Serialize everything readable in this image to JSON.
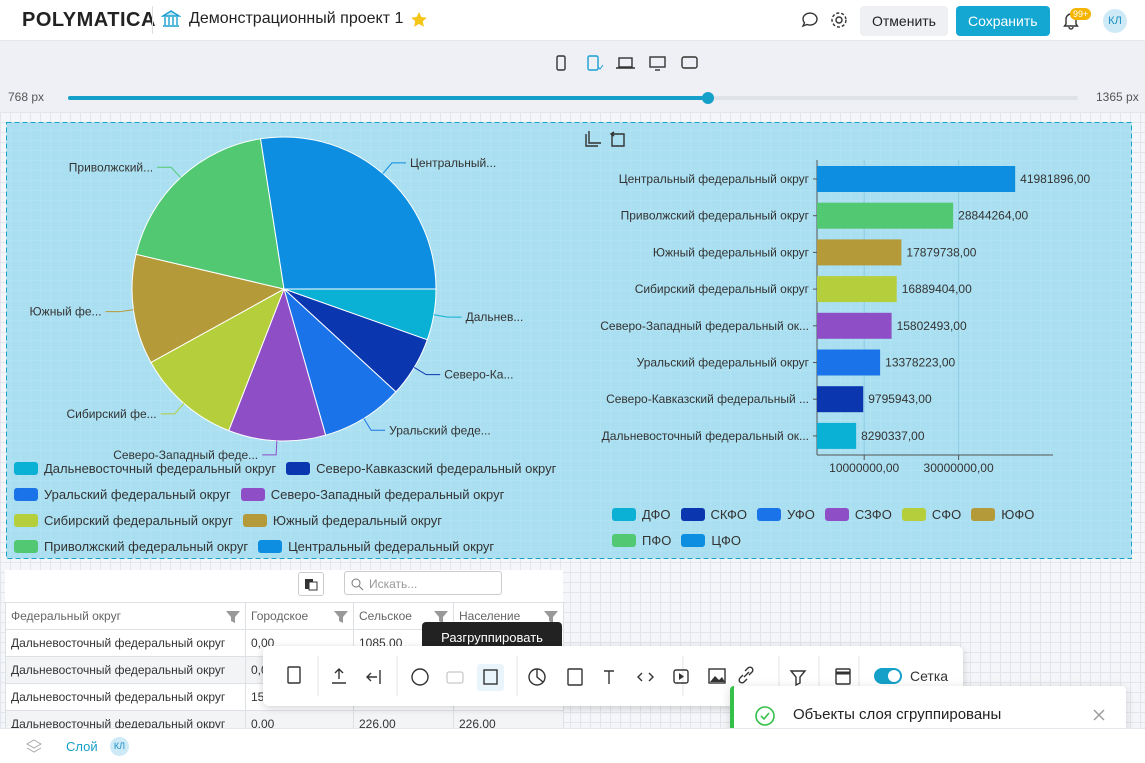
{
  "header": {
    "logo": "POLYMATICA",
    "project": "Демонстрационный проект 1",
    "cancel": "Отменить",
    "save": "Сохранить",
    "badge": "99+",
    "avatar": "КЛ"
  },
  "slider": {
    "min_label": "768 px",
    "max_label": "1365 px"
  },
  "chart_data": [
    {
      "type": "pie",
      "categories": [
        "Дальневосточный федеральный округ",
        "Северо-Кавказский федеральный округ",
        "Уральский федеральный округ",
        "Северо-Западный федеральный округ",
        "Сибирский федеральный округ",
        "Южный федеральный округ",
        "Приволжский федеральный округ",
        "Центральный федеральный округ"
      ],
      "labels": [
        "Дальнев...",
        "Северо-Ка...",
        "Уральский феде...",
        "Северо-Западный феде...",
        "Сибирский фе...",
        "Южный фе...",
        "Приволжский...",
        "Центральный..."
      ],
      "values": [
        8290337,
        9795943,
        13378223,
        15802493,
        16889404,
        17879738,
        28844264,
        41981896
      ],
      "colors": [
        "#0bb0d5",
        "#0a36b0",
        "#1a73e8",
        "#8e4ec6",
        "#b5cf3c",
        "#b59a3a",
        "#52c873",
        "#0d8ee0"
      ]
    },
    {
      "type": "bar",
      "orientation": "horizontal",
      "categories": [
        "Центральный федеральный округ",
        "Приволжский федеральный округ",
        "Южный федеральный округ",
        "Сибирский федеральный округ",
        "Северо-Западный федеральный ок...",
        "Уральский федеральный округ",
        "Северо-Кавказский федеральный ...",
        "Дальневосточный федеральный ок..."
      ],
      "values": [
        41981896,
        28844264,
        17879738,
        16889404,
        15802493,
        13378223,
        9795943,
        8290337
      ],
      "value_labels": [
        "41981896,00",
        "28844264,00",
        "17879738,00",
        "16889404,00",
        "15802493,00",
        "13378223,00",
        "9795943,00",
        "8290337,00"
      ],
      "colors": [
        "#0d8ee0",
        "#52c873",
        "#b59a3a",
        "#b5cf3c",
        "#8e4ec6",
        "#1a73e8",
        "#0a36b0",
        "#0bb0d5"
      ],
      "xlim": [
        0,
        50000000
      ],
      "xticks": [
        {
          "value": 10000000,
          "label": "10000000,00"
        },
        {
          "value": 30000000,
          "label": "30000000,00"
        }
      ],
      "grid": true,
      "legend": [
        "ДФО",
        "СКФО",
        "УФО",
        "СЗФО",
        "СФО",
        "ЮФО",
        "ПФО",
        "ЦФО"
      ],
      "legend_colors": [
        "#0bb0d5",
        "#0a36b0",
        "#1a73e8",
        "#8e4ec6",
        "#b5cf3c",
        "#b59a3a",
        "#52c873",
        "#0d8ee0"
      ]
    }
  ],
  "table": {
    "search": "Искать...",
    "headers": [
      "Федеральный округ",
      "Городское",
      "Сельское",
      "Население"
    ],
    "rows": [
      [
        "Дальневосточный федеральный округ",
        "0,00",
        "1085,00",
        ""
      ],
      [
        "Дальневосточный федеральный округ",
        "0,0",
        "",
        ""
      ],
      [
        "Дальневосточный федеральный округ",
        "15",
        "",
        ""
      ],
      [
        "Дальневосточный федеральный округ",
        "0,00",
        "226,00",
        "226,00"
      ]
    ]
  },
  "toolbar": {
    "tooltip": "Разгруппировать",
    "grid_toggle": "Сетка"
  },
  "toast": {
    "message": "Объекты слоя сгруппированы"
  },
  "footer": {
    "layer": "Слой",
    "avatar": "КЛ"
  }
}
